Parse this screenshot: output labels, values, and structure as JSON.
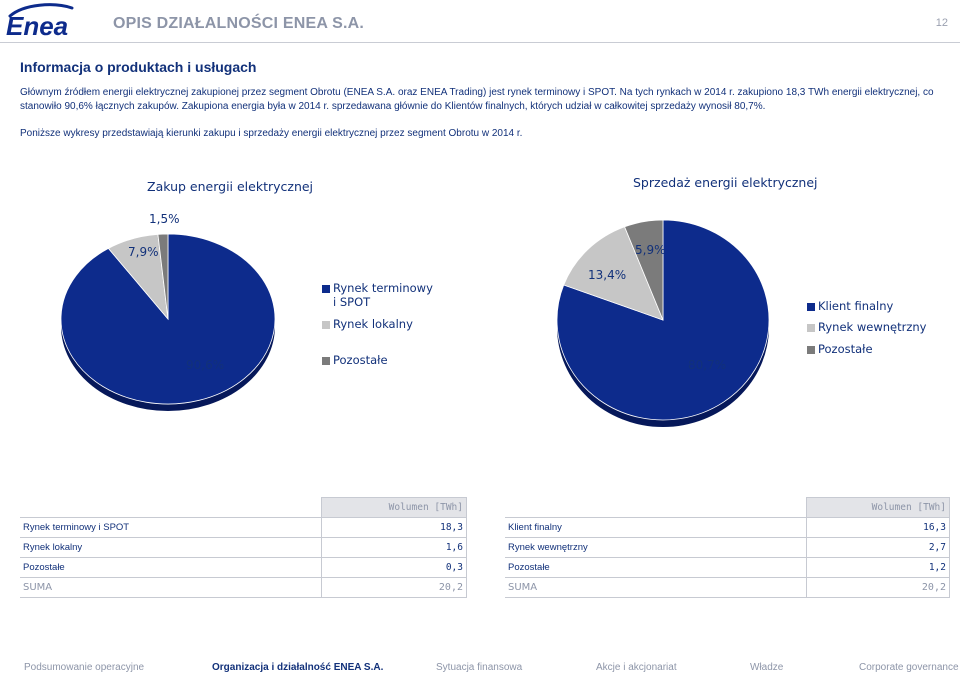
{
  "header": {
    "title": "OPIS DZIAŁALNOŚCI ENEA S.A.",
    "page_number": "12",
    "logo_text": "Enea"
  },
  "section_title": "Informacja o produktach i usługach",
  "paragraphs": [
    "Głównym źródłem energii elektrycznej zakupionej przez segment Obrotu (ENEA S.A. oraz ENEA Trading) jest rynek terminowy i SPOT. Na tych rynkach w 2014 r. zakupiono 18,3 TWh energii elektrycznej, co stanowiło 90,6% łącznych zakupów. Zakupiona energia była w 2014 r. sprzedawana głównie do Klientów finalnych, których udział w całkowitej sprzedaży wynosił 80,7%.",
    "Poniższe wykresy przedstawiają kierunki zakupu i sprzedaży energii elektrycznej przez segment Obrotu w 2014 r."
  ],
  "colors": {
    "navy": "#0d2b8c",
    "light_gray": "#c6c6c6",
    "dark_gray": "#7b7b7b",
    "accent_text": "#12317a"
  },
  "chart_data": [
    {
      "type": "pie",
      "title": "Zakup energii elektrycznej",
      "categories": [
        "Rynek terminowy i SPOT",
        "Rynek lokalny",
        "Pozostałe"
      ],
      "values": [
        90.6,
        7.9,
        1.5
      ],
      "value_labels": [
        "90,6%",
        "7,9%",
        "1,5%"
      ],
      "legend": [
        "Rynek terminowy",
        "i SPOT",
        "Rynek lokalny",
        "Pozostałe"
      ],
      "legend_placement": "right"
    },
    {
      "type": "pie",
      "title": "Sprzedaż energii elektrycznej",
      "categories": [
        "Klient finalny",
        "Rynek wewnętrzny",
        "Pozostałe"
      ],
      "values": [
        80.7,
        13.4,
        5.9
      ],
      "value_labels": [
        "80,7%",
        "13,4%",
        "5,9%"
      ],
      "legend": [
        "Klient finalny",
        "Rynek wewnętrzny",
        "Pozostałe"
      ],
      "legend_placement": "right"
    }
  ],
  "tables": [
    {
      "header": "Wolumen [TWh]",
      "rows": [
        {
          "label": "Rynek terminowy i SPOT",
          "value": "18,3"
        },
        {
          "label": "Rynek lokalny",
          "value": "1,6"
        },
        {
          "label": "Pozostałe",
          "value": "0,3"
        }
      ],
      "sum": {
        "label": "SUMA",
        "value": "20,2"
      }
    },
    {
      "header": "Wolumen [TWh]",
      "rows": [
        {
          "label": "Klient finalny",
          "value": "16,3"
        },
        {
          "label": "Rynek wewnętrzny",
          "value": "2,7"
        },
        {
          "label": "Pozostałe",
          "value": "1,2"
        }
      ],
      "sum": {
        "label": "SUMA",
        "value": "20,2"
      }
    }
  ],
  "footer": {
    "items": [
      "Podsumowanie operacyjne",
      "Organizacja i działalność ENEA S.A.",
      "Sytuacja finansowa",
      "Akcje i akcjonariat",
      "Władze",
      "Corporate governance"
    ],
    "active_index": 1
  }
}
